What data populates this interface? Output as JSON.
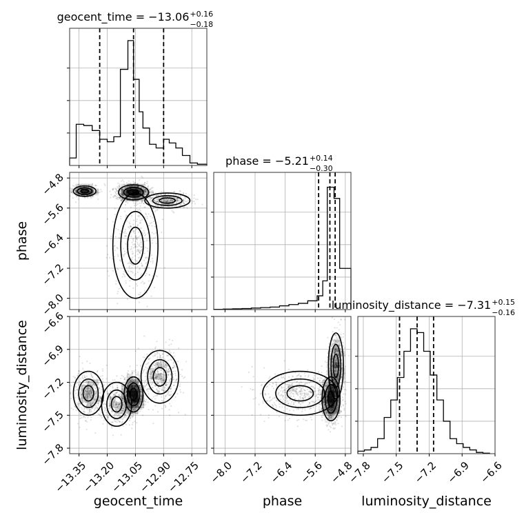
{
  "chart_data": {
    "type": "corner",
    "parameters": [
      "geocent_time",
      "phase",
      "luminosity_distance"
    ],
    "axis_labels": {
      "geocent_time": "geocent_time",
      "phase": "phase",
      "luminosity_distance": "luminosity_distance"
    },
    "ranges": {
      "geocent_time": [
        -13.4,
        -12.67
      ],
      "phase": [
        -8.3,
        -4.65
      ],
      "luminosity_distance": [
        -7.85,
        -6.6
      ]
    },
    "ticks": {
      "geocent_time": [
        "−13.35",
        "−13.20",
        "−13.05",
        "−12.90",
        "−12.75"
      ],
      "phase": [
        "−8.0",
        "−7.2",
        "−6.4",
        "−5.6",
        "−4.8"
      ],
      "luminosity_distance": [
        "−7.8",
        "−7.5",
        "−7.2",
        "−6.9",
        "−6.6"
      ]
    },
    "tick_values": {
      "geocent_time": [
        -13.35,
        -13.2,
        -13.05,
        -12.9,
        -12.75
      ],
      "phase": [
        -8.0,
        -7.2,
        -6.4,
        -5.6,
        -4.8
      ],
      "luminosity_distance": [
        -7.8,
        -7.5,
        -7.2,
        -6.9,
        -6.6
      ]
    },
    "titles": {
      "geocent_time": {
        "prefix": "geocent_time = −13.06",
        "plus": "+0.16",
        "minus": "−0.18"
      },
      "phase": {
        "prefix": "phase = −5.21",
        "plus": "+0.14",
        "minus": "−0.30"
      },
      "luminosity_distance": {
        "prefix": "luminosity_distance = −7.31",
        "plus": "+0.15",
        "minus": "−0.16"
      }
    },
    "quantiles": {
      "geocent_time": [
        -13.24,
        -13.06,
        -12.9
      ],
      "phase": [
        -5.51,
        -5.21,
        -5.07
      ],
      "luminosity_distance": [
        -7.47,
        -7.31,
        -7.16
      ]
    },
    "histograms": {
      "geocent_time": {
        "edges": [
          -13.4,
          -13.365,
          -13.325,
          -13.28,
          -13.24,
          -13.2,
          -13.165,
          -13.13,
          -13.09,
          -13.06,
          -13.03,
          -13.01,
          -12.975,
          -12.94,
          -12.9,
          -12.87,
          -12.835,
          -12.8,
          -12.76,
          -12.72,
          -12.67
        ],
        "counts": [
          0.06,
          0.33,
          0.32,
          0.28,
          0.21,
          0.19,
          0.23,
          0.77,
          1.0,
          0.69,
          0.43,
          0.3,
          0.17,
          0.14,
          0.21,
          0.18,
          0.14,
          0.08,
          0.02,
          0.01
        ]
      },
      "phase": {
        "edges": [
          -8.3,
          -8.05,
          -7.8,
          -7.55,
          -7.3,
          -7.05,
          -6.8,
          -6.55,
          -6.3,
          -6.05,
          -5.8,
          -5.55,
          -5.4,
          -5.28,
          -5.1,
          -4.95,
          -4.65
        ],
        "counts": [
          0.002,
          0.004,
          0.006,
          0.008,
          0.012,
          0.016,
          0.02,
          0.03,
          0.04,
          0.05,
          0.07,
          0.11,
          0.23,
          0.98,
          0.89,
          0.33
        ]
      },
      "luminosity_distance": {
        "edges": [
          -7.85,
          -7.79,
          -7.73,
          -7.67,
          -7.61,
          -7.55,
          -7.49,
          -7.43,
          -7.37,
          -7.31,
          -7.25,
          -7.19,
          -7.13,
          -7.07,
          -7.01,
          -6.95,
          -6.89,
          -6.83,
          -6.77,
          -6.71,
          -6.65
        ],
        "counts": [
          0.02,
          0.03,
          0.05,
          0.12,
          0.29,
          0.43,
          0.61,
          0.82,
          1.0,
          0.97,
          0.82,
          0.63,
          0.43,
          0.26,
          0.12,
          0.08,
          0.05,
          0.03,
          0.01,
          0.004
        ]
      }
    },
    "pair_modes": {
      "phase_vs_geocent_time": [
        {
          "x": -13.06,
          "y": -5.18,
          "sx": 0.04,
          "sy": 0.1,
          "w": 0.5
        },
        {
          "x": -13.32,
          "y": -5.15,
          "sx": 0.03,
          "sy": 0.07,
          "w": 0.2
        },
        {
          "x": -12.88,
          "y": -5.4,
          "sx": 0.06,
          "sy": 0.1,
          "w": 0.15
        },
        {
          "x": -13.05,
          "y": -6.6,
          "sx": 0.06,
          "sy": 0.7,
          "w": 0.15
        }
      ],
      "luminosity_distance_vs_geocent_time": [
        {
          "x": -13.06,
          "y": -7.31,
          "sx": 0.025,
          "sy": 0.08,
          "w": 0.45
        },
        {
          "x": -13.3,
          "y": -7.3,
          "sx": 0.04,
          "sy": 0.1,
          "w": 0.2
        },
        {
          "x": -12.92,
          "y": -7.15,
          "sx": 0.05,
          "sy": 0.12,
          "w": 0.2
        },
        {
          "x": -13.15,
          "y": -7.4,
          "sx": 0.04,
          "sy": 0.1,
          "w": 0.15
        }
      ],
      "luminosity_distance_vs_phase": [
        {
          "x": -5.18,
          "y": -7.35,
          "sx": 0.12,
          "sy": 0.1,
          "w": 0.5
        },
        {
          "x": -5.05,
          "y": -7.05,
          "sx": 0.1,
          "sy": 0.15,
          "w": 0.3
        },
        {
          "x": -6.0,
          "y": -7.3,
          "sx": 0.5,
          "sy": 0.1,
          "w": 0.2
        }
      ]
    },
    "grid": true,
    "colors": {
      "line": "#000000",
      "grid": "#b0b0b0",
      "points": "#000000",
      "fill": "#000000"
    }
  }
}
